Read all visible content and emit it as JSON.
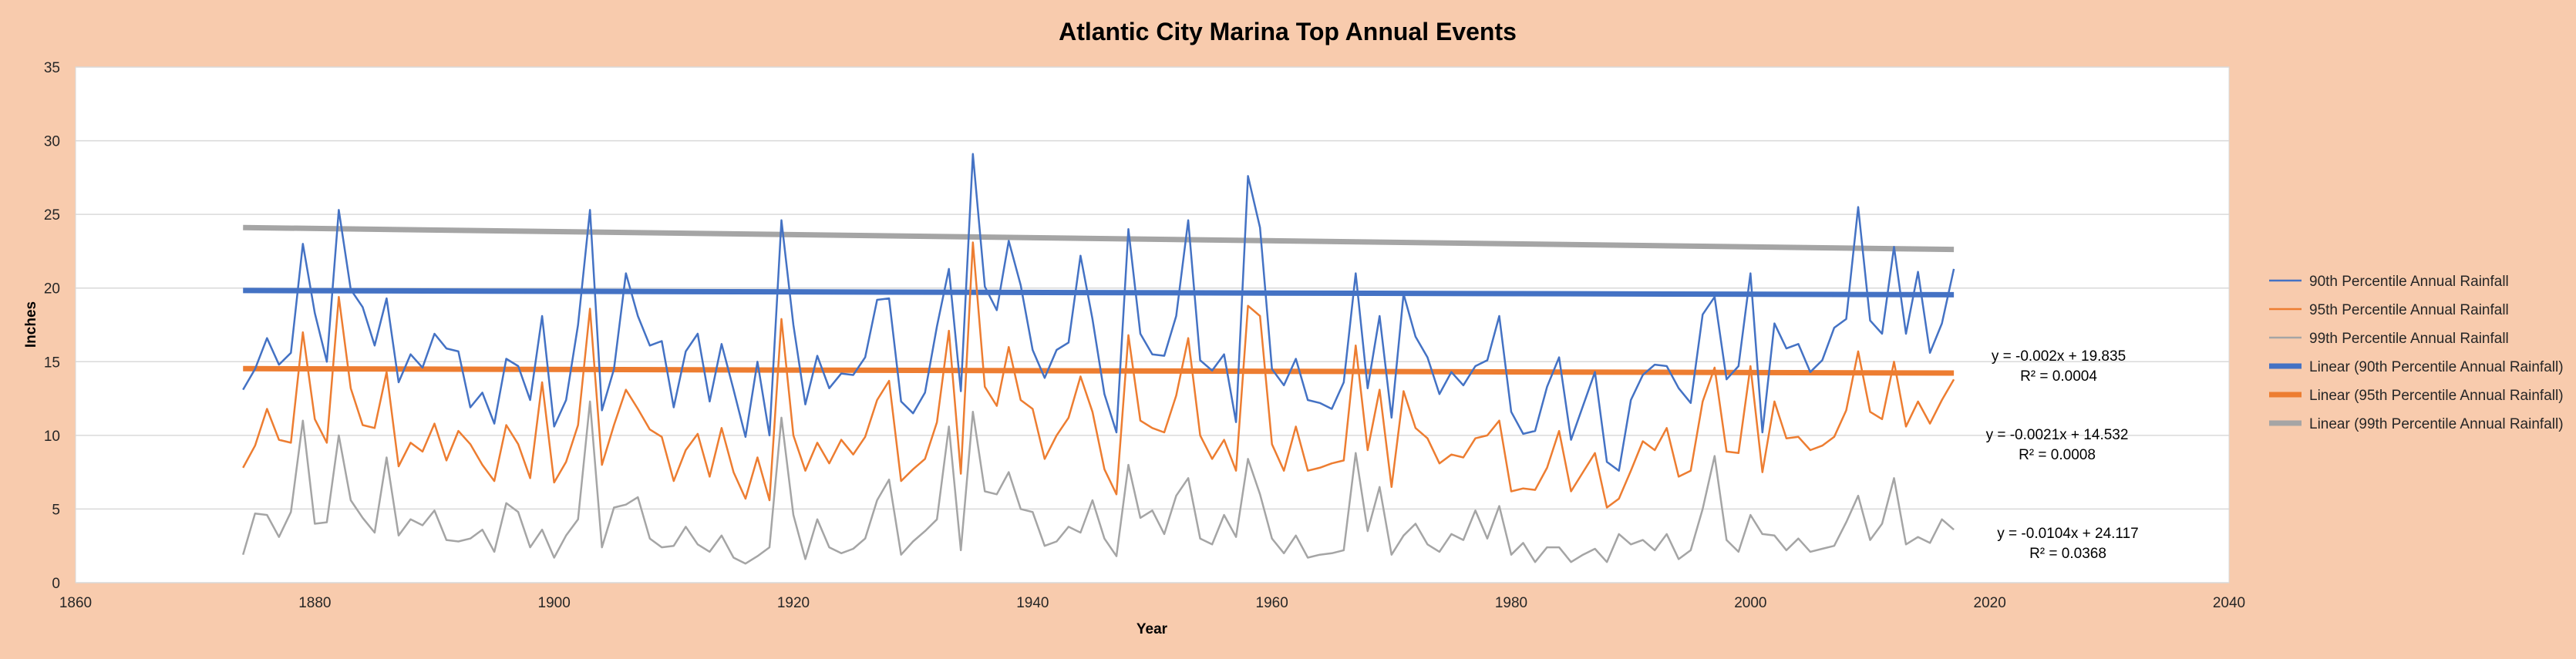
{
  "chart_data": {
    "type": "line",
    "title": "Atlantic City Marina Top Annual Events",
    "xlabel": "Year",
    "ylabel": "Inches",
    "xlim": [
      1860,
      2040
    ],
    "ylim": [
      0,
      35
    ],
    "x_ticks": [
      "1860",
      "1880",
      "1900",
      "1920",
      "1940",
      "1960",
      "1980",
      "2000",
      "2020",
      "2040"
    ],
    "y_ticks": [
      "0",
      "5",
      "10",
      "15",
      "20",
      "25",
      "30",
      "35"
    ],
    "grid": "horizontal",
    "legend_position": "right",
    "start_year": 1874,
    "series": [
      {
        "name": "90th Percentile Annual Rainfall",
        "color": "#4472c4",
        "values": [
          13.1,
          14.5,
          16.6,
          14.8,
          15.6,
          23.0,
          18.3,
          15.0,
          25.3,
          19.9,
          18.7,
          16.1,
          19.3,
          13.6,
          15.5,
          14.6,
          16.9,
          15.9,
          15.7,
          11.9,
          12.9,
          10.8,
          15.2,
          14.7,
          12.4,
          18.1,
          10.6,
          12.4,
          17.5,
          25.3,
          11.7,
          14.5,
          21.0,
          18.1,
          16.1,
          16.4,
          11.9,
          15.7,
          16.9,
          12.3,
          16.2,
          13.1,
          9.9,
          15.0,
          10.0,
          24.6,
          17.5,
          12.1,
          15.4,
          13.2,
          14.2,
          14.1,
          15.3,
          19.2,
          19.3,
          12.3,
          11.5,
          12.9,
          17.4,
          21.3,
          13.0,
          29.1,
          20.1,
          18.5,
          23.2,
          20.2,
          15.8,
          13.9,
          15.8,
          16.3,
          22.2,
          17.9,
          12.8,
          10.2,
          24.0,
          16.9,
          15.5,
          15.4,
          18.1,
          24.6,
          15.1,
          14.4,
          15.5,
          10.9,
          27.6,
          24.1,
          14.5,
          13.4,
          15.2,
          12.4,
          12.2,
          11.8,
          13.6,
          21.0,
          13.2,
          18.1,
          11.2,
          19.6,
          16.7,
          15.3,
          12.8,
          14.3,
          13.4,
          14.7,
          15.1,
          18.1,
          11.6,
          10.1,
          10.3,
          13.3,
          15.3,
          9.7,
          12.0,
          14.3,
          8.2,
          7.6,
          12.4,
          14.1,
          14.8,
          14.7,
          13.2,
          12.2,
          18.2,
          19.4,
          13.8,
          14.7,
          21.0,
          10.2,
          17.6,
          15.9,
          16.2,
          14.3,
          15.1,
          17.3,
          17.9,
          25.5,
          17.8,
          16.9,
          22.8,
          16.9,
          21.1,
          15.6,
          17.6,
          21.3
        ]
      },
      {
        "name": "95th Percentile Annual Rainfall",
        "color": "#ed7d31",
        "values": [
          7.8,
          9.3,
          11.8,
          9.7,
          9.5,
          17.0,
          11.1,
          9.5,
          19.4,
          13.2,
          10.7,
          10.5,
          14.3,
          7.9,
          9.5,
          8.9,
          10.8,
          8.3,
          10.3,
          9.4,
          8.0,
          6.9,
          10.7,
          9.4,
          7.1,
          13.6,
          6.8,
          8.2,
          10.7,
          18.6,
          8.0,
          10.7,
          13.1,
          11.8,
          10.4,
          9.9,
          6.9,
          9.0,
          10.1,
          7.2,
          10.5,
          7.5,
          5.7,
          8.5,
          5.6,
          17.9,
          10.0,
          7.6,
          9.5,
          8.1,
          9.7,
          8.7,
          9.9,
          12.4,
          13.7,
          6.9,
          7.7,
          8.4,
          10.9,
          17.1,
          7.4,
          23.1,
          13.3,
          12.0,
          16.0,
          12.4,
          11.8,
          8.4,
          10.0,
          11.2,
          14.0,
          11.6,
          7.7,
          6.0,
          16.8,
          11.0,
          10.5,
          10.2,
          12.7,
          16.6,
          10.0,
          8.4,
          9.7,
          7.6,
          18.8,
          18.1,
          9.4,
          7.6,
          10.6,
          7.6,
          7.8,
          8.1,
          8.3,
          16.1,
          9.0,
          13.1,
          6.5,
          13.0,
          10.5,
          9.8,
          8.1,
          8.7,
          8.5,
          9.8,
          10.0,
          11.0,
          6.2,
          6.4,
          6.3,
          7.8,
          10.3,
          6.2,
          7.5,
          8.8,
          5.1,
          5.7,
          7.6,
          9.6,
          9.0,
          10.5,
          7.2,
          7.6,
          12.3,
          14.6,
          8.9,
          8.8,
          14.7,
          7.5,
          12.3,
          9.8,
          9.9,
          9.0,
          9.3,
          9.9,
          11.7,
          15.7,
          11.6,
          11.1,
          15.0,
          10.6,
          12.3,
          10.8,
          12.4,
          13.8
        ]
      },
      {
        "name": "99th Percentile Annual Rainfall",
        "color": "#a5a5a5",
        "values": [
          1.9,
          4.7,
          4.6,
          3.1,
          4.8,
          11.0,
          4.0,
          4.1,
          10.0,
          5.6,
          4.4,
          3.4,
          8.5,
          3.2,
          4.3,
          3.9,
          4.9,
          2.9,
          2.8,
          3.0,
          3.6,
          2.1,
          5.4,
          4.8,
          2.4,
          3.6,
          1.7,
          3.2,
          4.3,
          12.3,
          2.4,
          5.1,
          5.3,
          5.8,
          3.0,
          2.4,
          2.5,
          3.8,
          2.6,
          2.1,
          3.2,
          1.7,
          1.3,
          1.8,
          2.4,
          11.2,
          4.6,
          1.6,
          4.3,
          2.4,
          2.0,
          2.3,
          3.0,
          5.6,
          7.0,
          1.9,
          2.8,
          3.5,
          4.3,
          10.6,
          2.2,
          11.6,
          6.2,
          6.0,
          7.5,
          5.0,
          4.8,
          2.5,
          2.8,
          3.8,
          3.4,
          5.6,
          3.0,
          1.8,
          8.0,
          4.4,
          4.9,
          3.3,
          5.9,
          7.1,
          3.0,
          2.6,
          4.6,
          3.1,
          8.4,
          6.0,
          3.0,
          2.0,
          3.2,
          1.7,
          1.9,
          2.0,
          2.2,
          8.8,
          3.5,
          6.5,
          1.9,
          3.2,
          4.0,
          2.6,
          2.1,
          3.3,
          2.9,
          4.9,
          3.0,
          5.2,
          1.9,
          2.7,
          1.4,
          2.4,
          2.4,
          1.4,
          1.9,
          2.3,
          1.4,
          3.3,
          2.6,
          2.9,
          2.2,
          3.3,
          1.6,
          2.2,
          5.0,
          8.6,
          2.9,
          2.1,
          4.6,
          3.3,
          3.2,
          2.2,
          3.0,
          2.1,
          2.3,
          2.5,
          4.1,
          5.9,
          2.9,
          4.0,
          7.1,
          2.6,
          3.1,
          2.7,
          4.3,
          3.6
        ]
      }
    ],
    "trendlines": [
      {
        "name": "Linear (90th Percentile Annual Rainfall)",
        "color": "#4472c4",
        "slope": -0.002,
        "intercept": 19.835,
        "equation": "y = -0.002x + 19.835",
        "r2": "R² = 0.0004"
      },
      {
        "name": "Linear (95th Percentile Annual Rainfall)",
        "color": "#ed7d31",
        "slope": -0.0021,
        "intercept": 14.532,
        "equation": "y = -0.0021x + 14.532",
        "r2": "R² = 0.0008"
      },
      {
        "name": "Linear (99th Percentile Annual Rainfall)",
        "color": "#a5a5a5",
        "slope": -0.0104,
        "intercept": 24.117,
        "equation": "y = -0.0104x + 24.117",
        "r2": "R² = 0.0368"
      }
    ]
  }
}
